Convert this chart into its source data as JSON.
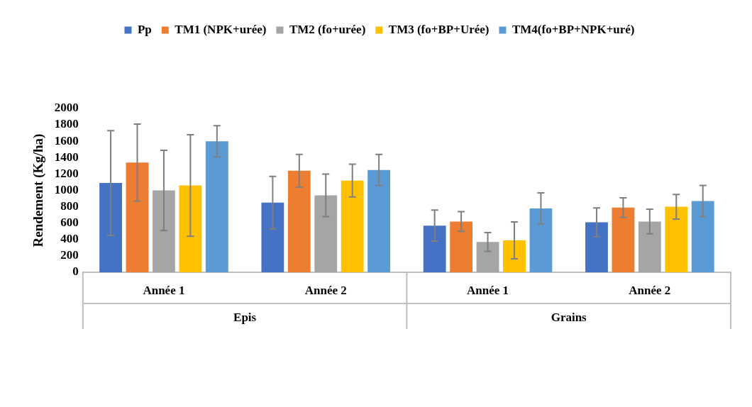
{
  "chart_data": {
    "type": "bar",
    "ylabel": "Rendement (Kg/ha)",
    "categories": [
      "Année 1",
      "Année 2",
      "Année 1",
      "Année 2"
    ],
    "annotations": [
      "Epis",
      "Grains"
    ],
    "series": [
      {
        "name": "Pp",
        "color": "#4472c4",
        "values": [
          1090,
          850,
          570,
          610
        ],
        "errors": [
          640,
          320,
          190,
          175
        ]
      },
      {
        "name": "TM1 (NPK+urée)",
        "color": "#ed7d31",
        "values": [
          1340,
          1240,
          620,
          790
        ],
        "errors": [
          470,
          200,
          120,
          120
        ]
      },
      {
        "name": "TM2 (fo+urée)",
        "color": "#a5a5a5",
        "values": [
          1000,
          940,
          370,
          620
        ],
        "errors": [
          490,
          260,
          115,
          150
        ]
      },
      {
        "name": "TM3 (fo+BP+Urée)",
        "color": "#ffc000",
        "values": [
          1060,
          1120,
          390,
          800
        ],
        "errors": [
          620,
          200,
          225,
          150
        ]
      },
      {
        "name": "TM4(fo+BP+NPK+uré)",
        "color": "#5b9bd5",
        "values": [
          1600,
          1250,
          780,
          870
        ],
        "errors": [
          190,
          190,
          190,
          190
        ]
      }
    ],
    "ylim": [
      0,
      2000
    ],
    "yticks": [
      0,
      200,
      400,
      600,
      800,
      1000,
      1200,
      1400,
      1600,
      1800,
      2000
    ],
    "grid": false,
    "legend": "top"
  }
}
